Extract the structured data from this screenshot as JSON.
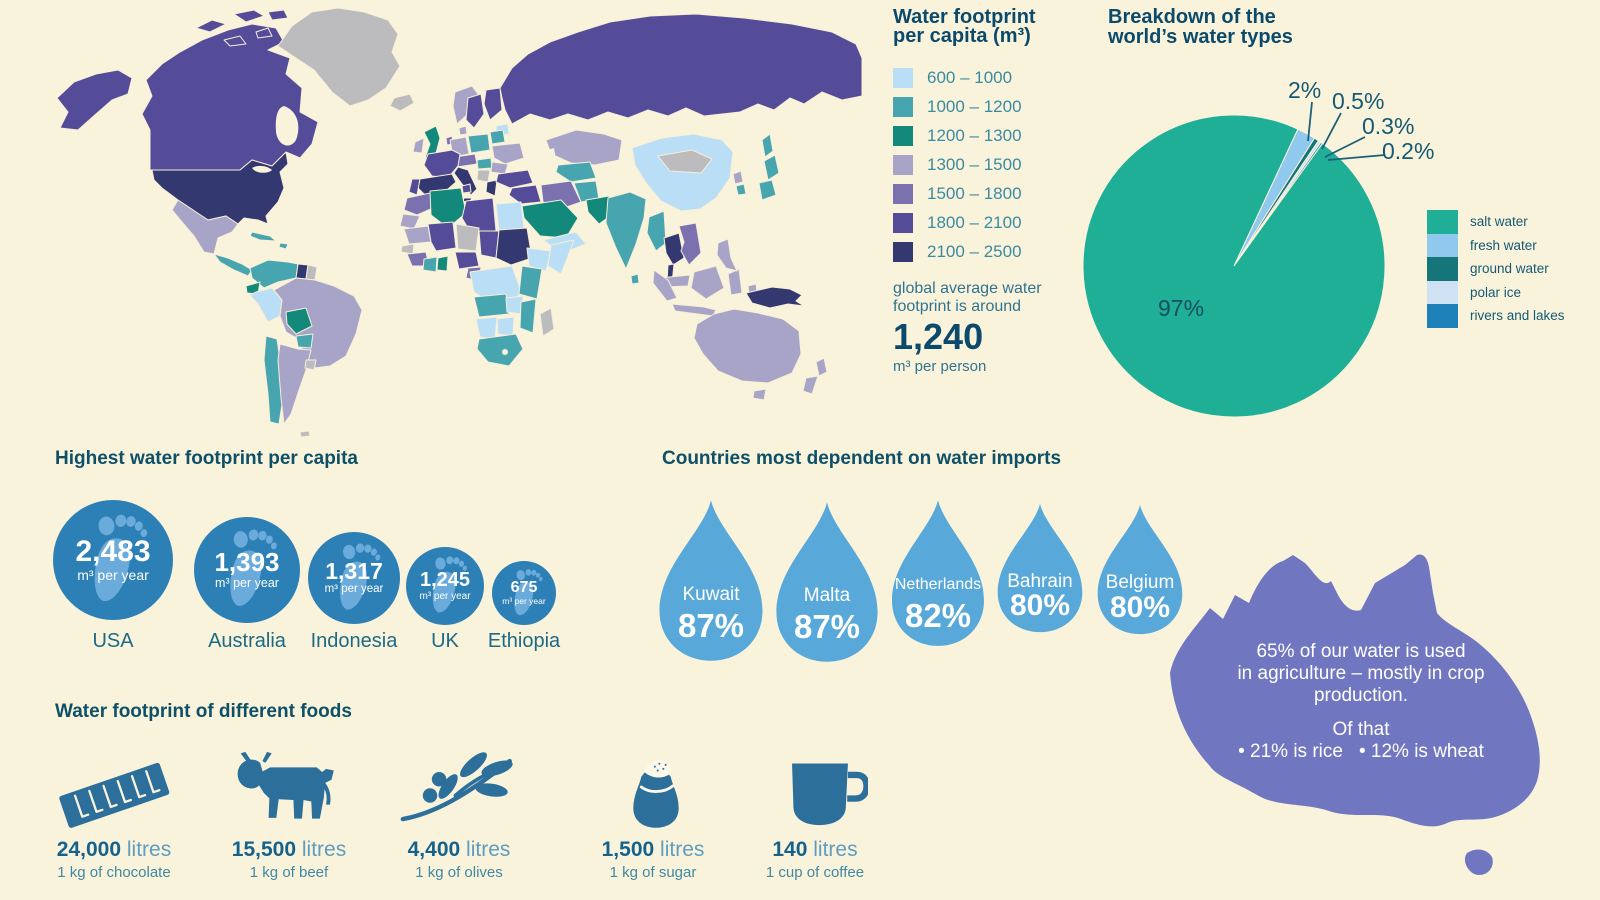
{
  "background_color": "#faf3dc",
  "map_legend": {
    "title_line1": "Water footprint",
    "title_line2": "per capita (m³)",
    "items": [
      {
        "label": "600 – 1000",
        "color": "#b9def6"
      },
      {
        "label": "1000 – 1200",
        "color": "#46a5af"
      },
      {
        "label": "1200 – 1300",
        "color": "#12897b"
      },
      {
        "label": "1300 – 1500",
        "color": "#a8a4c7"
      },
      {
        "label": "1500 – 1800",
        "color": "#7b71af"
      },
      {
        "label": "1800 – 2100",
        "color": "#554c99"
      },
      {
        "label": "2100 – 2500",
        "color": "#333870"
      }
    ],
    "note_line1": "global average water",
    "note_line2": "footprint is around",
    "average_value": "1,240",
    "average_unit": "m³ per person"
  },
  "pie": {
    "title_line1": "Breakdown of the",
    "title_line2": "world’s water types",
    "inside_label": "97%",
    "callouts": [
      "2%",
      "0.5%",
      "0.3%",
      "0.2%"
    ],
    "legend": [
      {
        "label": "salt water",
        "color": "#1fae96"
      },
      {
        "label": "fresh water",
        "color": "#90c8ee"
      },
      {
        "label": "ground water",
        "color": "#14767b"
      },
      {
        "label": "polar ice",
        "color": "#cfe2f4"
      },
      {
        "label": "rivers and lakes",
        "color": "#1e80b8"
      }
    ]
  },
  "footprints": {
    "title": "Highest water footprint per capita",
    "items": [
      {
        "country": "USA",
        "value": "2,483",
        "unit": "m³ per year"
      },
      {
        "country": "Australia",
        "value": "1,393",
        "unit": "m³ per year"
      },
      {
        "country": "Indonesia",
        "value": "1,317",
        "unit": "m³ per year"
      },
      {
        "country": "UK",
        "value": "1,245",
        "unit": "m³ per year"
      },
      {
        "country": "Ethiopia",
        "value": "675",
        "unit": "m³ per year"
      }
    ]
  },
  "imports": {
    "title": "Countries most dependent on water imports",
    "items": [
      {
        "country": "Kuwait",
        "value": "87%"
      },
      {
        "country": "Malta",
        "value": "87%"
      },
      {
        "country": "Netherlands",
        "value": "82%"
      },
      {
        "country": "Bahrain",
        "value": "80%"
      },
      {
        "country": "Belgium",
        "value": "80%"
      }
    ]
  },
  "australia_fact": {
    "line1": "65% of our water is used",
    "line2": "in agriculture – mostly in crop",
    "line3": "production.",
    "line4": "Of that",
    "bullet1": "• 21% is rice",
    "bullet2": "• 12% is wheat"
  },
  "foods": {
    "title": "Water footprint of different foods",
    "items": [
      {
        "value": "24,000",
        "unit": "litres",
        "desc": "1 kg of chocolate",
        "icon": "chocolate-bar-icon"
      },
      {
        "value": "15,500",
        "unit": "litres",
        "desc": "1 kg of beef",
        "icon": "cow-icon"
      },
      {
        "value": "4,400",
        "unit": "litres",
        "desc": "1 kg of olives",
        "icon": "olive-branch-icon"
      },
      {
        "value": "1,500",
        "unit": "litres",
        "desc": "1 kg of sugar",
        "icon": "sugar-sack-icon"
      },
      {
        "value": "140",
        "unit": "litres",
        "desc": "1 cup of coffee",
        "icon": "coffee-mug-icon"
      }
    ]
  },
  "chart_data": [
    {
      "type": "heatmap",
      "subtype": "choropleth-world-map",
      "title": "Water footprint per capita (m³)",
      "bins": [
        "600 – 1000",
        "1000 – 1200",
        "1200 – 1300",
        "1300 – 1500",
        "1500 – 1800",
        "1800 – 2100",
        "2100 – 2500"
      ],
      "bin_colors": [
        "#b9def6",
        "#46a5af",
        "#12897b",
        "#a8a4c7",
        "#7b71af",
        "#554c99",
        "#333870"
      ],
      "annotation": "global average water footprint is around 1,240 m³ per person"
    },
    {
      "type": "pie",
      "title": "Breakdown of the world’s water types",
      "labels": [
        "salt water",
        "fresh water",
        "ground water",
        "polar ice",
        "rivers and lakes"
      ],
      "values": [
        97,
        2,
        0.5,
        0.3,
        0.2
      ],
      "colors": [
        "#1fae96",
        "#90c8ee",
        "#14767b",
        "#cfe2f4",
        "#1e80b8"
      ],
      "legend_position": "right",
      "start_angle_deg_from_top": 25
    },
    {
      "type": "bar",
      "title": "Highest water footprint per capita",
      "categories": [
        "USA",
        "Australia",
        "Indonesia",
        "UK",
        "Ethiopia"
      ],
      "values": [
        2483,
        1393,
        1317,
        1245,
        675
      ],
      "unit": "m³ per year"
    },
    {
      "type": "bar",
      "title": "Countries most dependent on water imports",
      "categories": [
        "Kuwait",
        "Malta",
        "Netherlands",
        "Bahrain",
        "Belgium"
      ],
      "values": [
        87,
        87,
        82,
        80,
        80
      ],
      "unit": "%"
    },
    {
      "type": "bar",
      "title": "Water footprint of different foods",
      "categories": [
        "1 kg of chocolate",
        "1 kg of beef",
        "1 kg of olives",
        "1 kg of sugar",
        "1 cup of coffee"
      ],
      "values": [
        24000,
        15500,
        4400,
        1500,
        140
      ],
      "unit": "litres"
    },
    {
      "type": "table",
      "title": "Australia agricultural water use",
      "rows": [
        [
          "water used in agriculture",
          "65%"
        ],
        [
          "of that, rice",
          "21%"
        ],
        [
          "of that, wheat",
          "12%"
        ]
      ]
    }
  ]
}
